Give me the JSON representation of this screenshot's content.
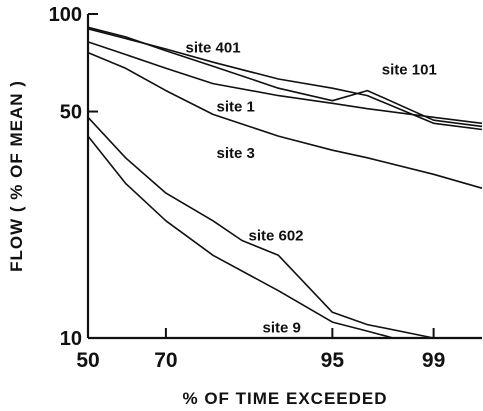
{
  "chart_data": {
    "type": "line",
    "xlabel": "% OF TIME EXCEEDED",
    "ylabel": "FLOW ( % OF MEAN )",
    "x_scale": "normal-probability",
    "y_scale": "log",
    "xlim": [
      50,
      99.6
    ],
    "ylim": [
      10,
      100
    ],
    "x_ticks": [
      50,
      70,
      95,
      99
    ],
    "x_tick_labels": [
      "50",
      "70",
      "95",
      "99"
    ],
    "y_ticks": [
      10,
      50,
      100
    ],
    "y_tick_labels": [
      "10",
      "50",
      "100"
    ],
    "grid": false,
    "legend": "direct labels",
    "series": [
      {
        "name": "site 401",
        "x": [
          50,
          60,
          70,
          80,
          90,
          95,
          97,
          99,
          99.6
        ],
        "y": [
          90,
          84,
          78,
          71,
          63,
          59,
          56,
          46,
          44
        ]
      },
      {
        "name": "site 101",
        "x": [
          50,
          60,
          70,
          80,
          90,
          95,
          97,
          99,
          99.6
        ],
        "y": [
          91,
          85,
          77,
          69,
          59,
          54,
          58,
          47,
          45
        ]
      },
      {
        "name": "site 1",
        "x": [
          50,
          60,
          70,
          80,
          90,
          95,
          97,
          99,
          99.6
        ],
        "y": [
          82,
          75,
          68,
          61,
          56,
          53,
          51,
          48,
          46
        ]
      },
      {
        "name": "site 3",
        "x": [
          50,
          60,
          70,
          80,
          90,
          95,
          97,
          99,
          99.6
        ],
        "y": [
          76,
          68,
          58,
          49,
          42,
          38,
          36,
          32,
          29
        ]
      },
      {
        "name": "site 602",
        "x": [
          50,
          60,
          70,
          80,
          85,
          90,
          95,
          97,
          99,
          99.6
        ],
        "y": [
          48,
          36,
          28,
          23,
          20,
          18,
          12,
          11,
          10,
          10
        ]
      },
      {
        "name": "site 9",
        "x": [
          50,
          60,
          70,
          80,
          90,
          95,
          97,
          98
        ],
        "y": [
          42,
          30,
          23,
          18,
          14,
          11.2,
          10.5,
          10
        ]
      }
    ]
  }
}
